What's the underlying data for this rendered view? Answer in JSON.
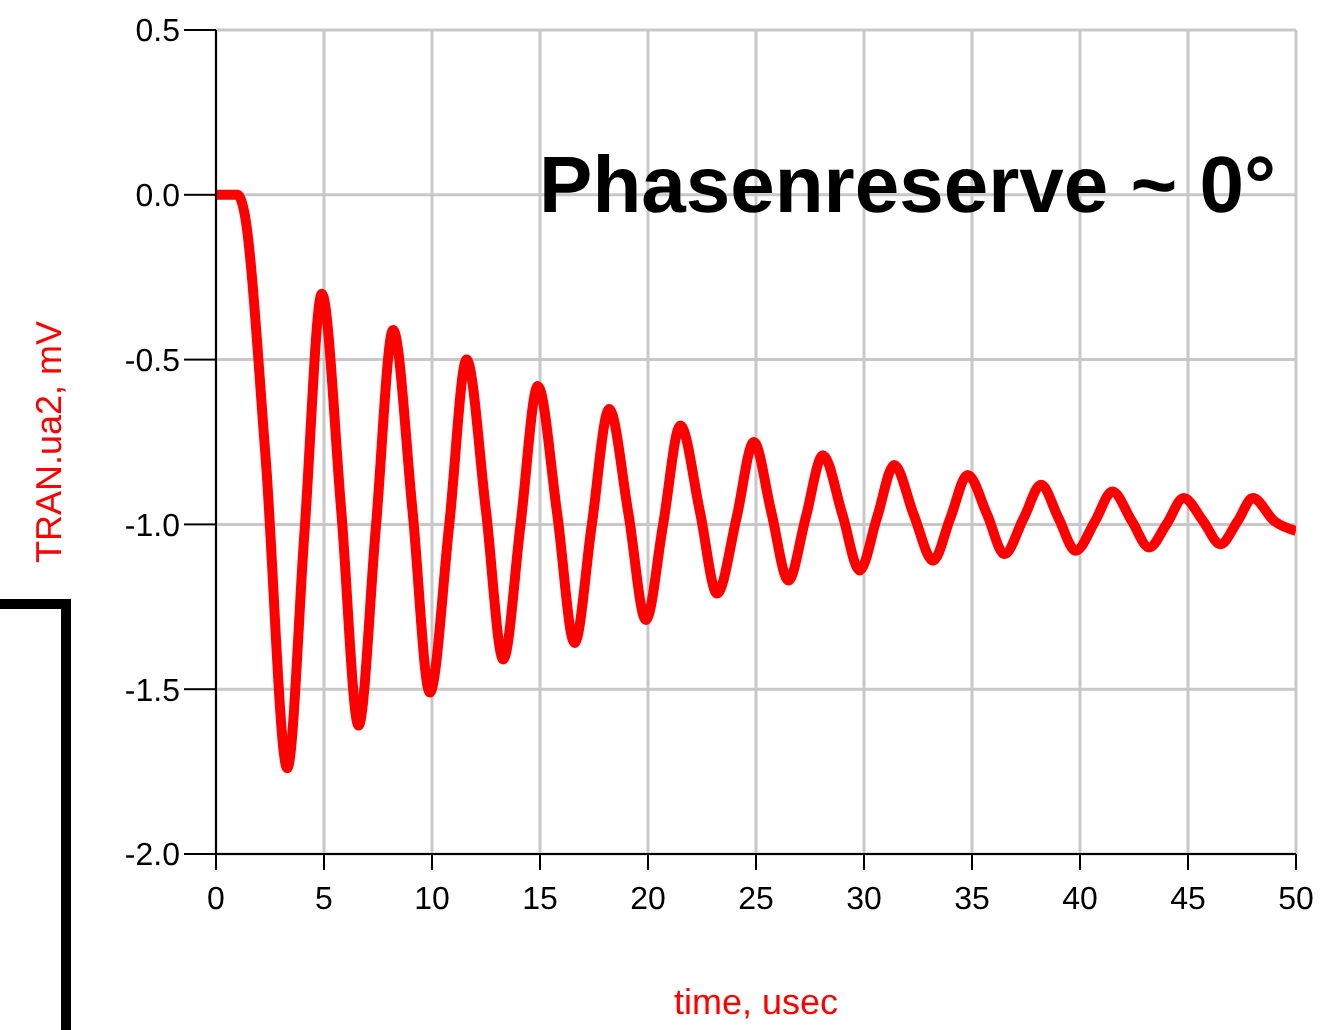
{
  "chart_data": {
    "type": "line",
    "title": "Phasenreserve ~ 0°",
    "xlabel": "time, usec",
    "ylabel": "TRAN.ua2, mV",
    "x": [
      0,
      1.0,
      1.3,
      2.3,
      3.3,
      4.1,
      4.9,
      5.8,
      6.6,
      7.4,
      8.2,
      9.1,
      9.9,
      10.8,
      11.6,
      12.5,
      13.3,
      14.1,
      14.9,
      15.8,
      16.6,
      17.4,
      18.2,
      19.1,
      19.9,
      20.7,
      21.5,
      22.4,
      23.2,
      24.1,
      24.9,
      25.7,
      26.5,
      27.3,
      28.1,
      29.0,
      29.8,
      30.6,
      31.4,
      32.3,
      33.2,
      34.0,
      34.8,
      35.7,
      36.5,
      37.4,
      38.2,
      39.0,
      39.8,
      40.7,
      41.5,
      42.4,
      43.2,
      44.0,
      44.8,
      45.7,
      46.5,
      47.3,
      48.0,
      49.0,
      50
    ],
    "series": [
      {
        "color": "#ff0000",
        "values": [
          0,
          0,
          -0.05,
          -0.8,
          -1.74,
          -1.02,
          -0.3,
          -0.96,
          -1.61,
          -1.01,
          -0.41,
          -0.96,
          -1.51,
          -1.0,
          -0.5,
          -0.96,
          -1.41,
          -1.0,
          -0.58,
          -0.97,
          -1.36,
          -1.0,
          -0.65,
          -0.97,
          -1.29,
          -1.0,
          -0.7,
          -0.96,
          -1.21,
          -0.98,
          -0.75,
          -0.96,
          -1.17,
          -0.98,
          -0.79,
          -0.97,
          -1.14,
          -0.98,
          -0.82,
          -0.97,
          -1.11,
          -0.98,
          -0.85,
          -0.97,
          -1.09,
          -0.98,
          -0.88,
          -0.98,
          -1.08,
          -0.99,
          -0.9,
          -0.99,
          -1.07,
          -1.0,
          -0.92,
          -0.99,
          -1.06,
          -0.99,
          -0.92,
          -0.99,
          -1.02
        ]
      }
    ],
    "xlim": [
      0,
      50
    ],
    "xticks": [
      0,
      5,
      10,
      15,
      20,
      25,
      30,
      35,
      40,
      45,
      50
    ],
    "ylim": [
      -2.0,
      0.5
    ],
    "yticks": [
      {
        "value": -2.0,
        "label": "-2.0"
      },
      {
        "value": -1.5,
        "label": "-1.5"
      },
      {
        "value": -1.0,
        "label": "-1.0"
      },
      {
        "value": -0.5,
        "label": "-0.5"
      },
      {
        "value": 0,
        "label": "0.0"
      },
      {
        "value": 0.5,
        "label": "0.5"
      }
    ],
    "grid": true,
    "marker": "none",
    "line_style": "solid",
    "legend": false
  }
}
